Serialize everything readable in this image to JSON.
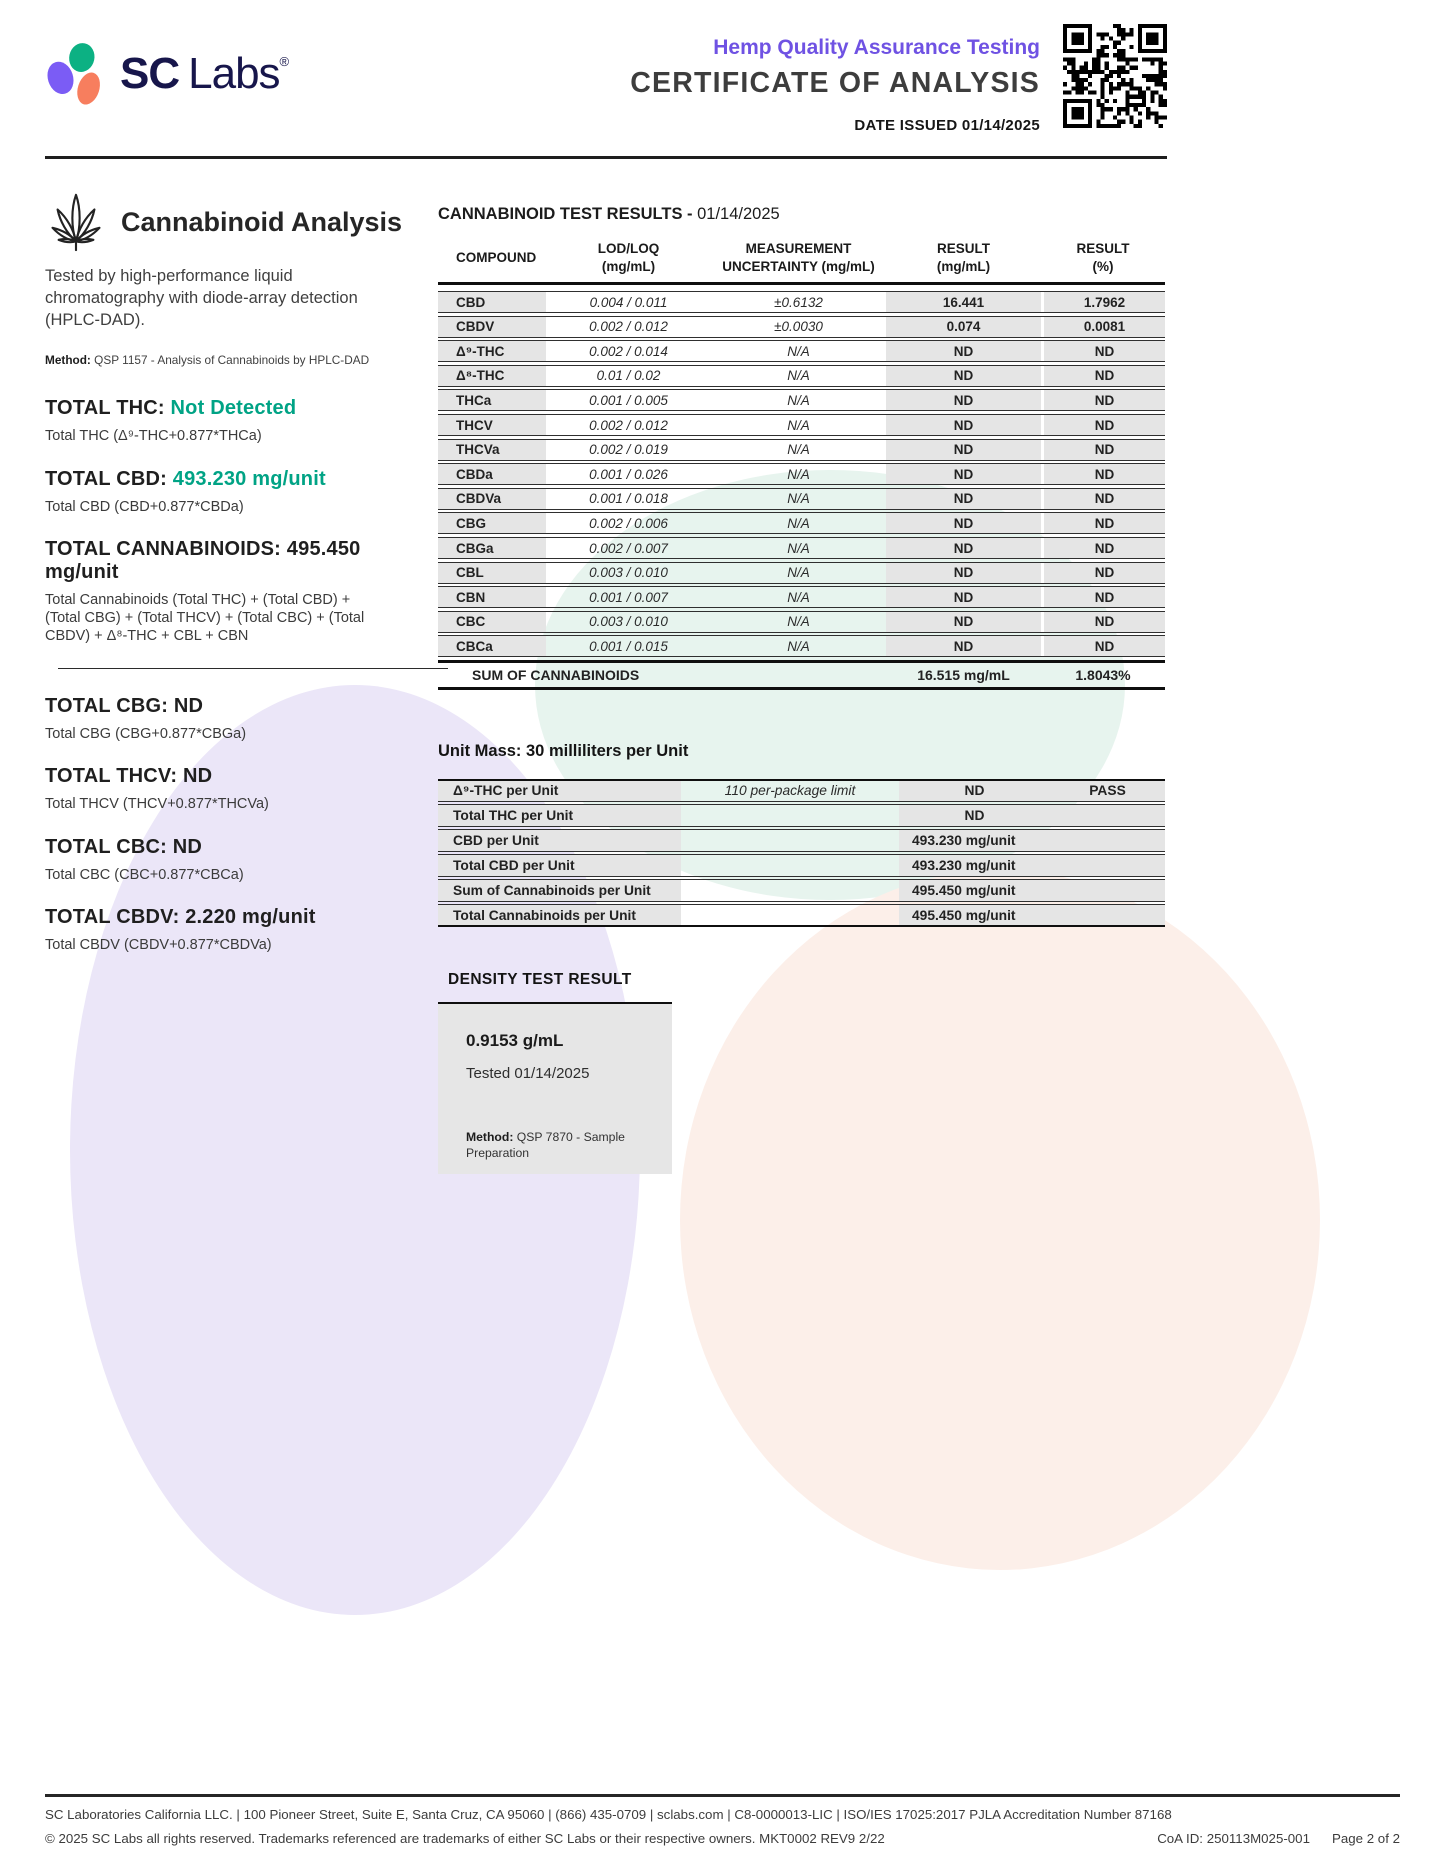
{
  "colors": {
    "accent_green": "#00A385",
    "accent_purple": "#6F52E3",
    "logo_navy": "#17164B",
    "logo_purple": "#7B5CF5",
    "logo_green": "#0CB183",
    "logo_coral": "#F77E5E",
    "cell_gray": "#E5E5E5"
  },
  "header": {
    "brand_bold": "SC",
    "brand_light": "Labs",
    "brand_reg": "®",
    "program": "Hemp Quality Assurance Testing",
    "title": "CERTIFICATE OF ANALYSIS",
    "date_issued": "DATE ISSUED 01/14/2025"
  },
  "analysis": {
    "section_title": "Cannabinoid Analysis",
    "description": "Tested by high-performance liquid chromatography with diode-array detection (HPLC-DAD).",
    "method_label": "Method:",
    "method_value": "QSP 1157 - Analysis of Cannabinoids by HPLC-DAD",
    "totals_primary": [
      {
        "label": "TOTAL THC:",
        "value": "Not Detected",
        "accent": true,
        "formula": "Total THC (Δ⁹-THC+0.877*THCa)"
      },
      {
        "label": "TOTAL CBD:",
        "value": "493.230 mg/unit",
        "accent": true,
        "formula": "Total CBD (CBD+0.877*CBDa)"
      },
      {
        "label": "TOTAL CANNABINOIDS:",
        "value": "495.450 mg/unit",
        "accent": false,
        "formula": "Total Cannabinoids (Total THC) + (Total CBD) + (Total CBG) + (Total THCV) + (Total CBC) + (Total CBDV) + Δ⁸-THC + CBL + CBN"
      }
    ],
    "totals_secondary": [
      {
        "label": "TOTAL CBG:",
        "value": "ND",
        "accent": false,
        "formula": "Total CBG (CBG+0.877*CBGa)"
      },
      {
        "label": "TOTAL THCV:",
        "value": "ND",
        "accent": false,
        "formula": "Total THCV (THCV+0.877*THCVa)"
      },
      {
        "label": "TOTAL CBC:",
        "value": "ND",
        "accent": false,
        "formula": "Total CBC (CBC+0.877*CBCa)"
      },
      {
        "label": "TOTAL CBDV:",
        "value": "2.220 mg/unit",
        "accent": false,
        "formula": "Total CBDV (CBDV+0.877*CBDVa)"
      }
    ]
  },
  "results_table": {
    "title": "CANNABINOID TEST RESULTS -",
    "title_date": "01/14/2025",
    "columns": [
      {
        "l1": "COMPOUND",
        "l2": ""
      },
      {
        "l1": "LOD/LOQ",
        "l2": "(mg/mL)"
      },
      {
        "l1": "MEASUREMENT",
        "l2": "UNCERTAINTY (mg/mL)"
      },
      {
        "l1": "RESULT",
        "l2": "(mg/mL)"
      },
      {
        "l1": "RESULT",
        "l2": "(%)"
      }
    ],
    "rows": [
      {
        "compound": "CBD",
        "lod_loq": "0.004 / 0.011",
        "uncertainty": "±0.6132",
        "result_mg": "16.441",
        "result_pct": "1.7962"
      },
      {
        "compound": "CBDV",
        "lod_loq": "0.002 / 0.012",
        "uncertainty": "±0.0030",
        "result_mg": "0.074",
        "result_pct": "0.0081"
      },
      {
        "compound": "Δ⁹-THC",
        "lod_loq": "0.002 / 0.014",
        "uncertainty": "N/A",
        "result_mg": "ND",
        "result_pct": "ND"
      },
      {
        "compound": "Δ⁸-THC",
        "lod_loq": "0.01 / 0.02",
        "uncertainty": "N/A",
        "result_mg": "ND",
        "result_pct": "ND"
      },
      {
        "compound": "THCa",
        "lod_loq": "0.001 / 0.005",
        "uncertainty": "N/A",
        "result_mg": "ND",
        "result_pct": "ND"
      },
      {
        "compound": "THCV",
        "lod_loq": "0.002 / 0.012",
        "uncertainty": "N/A",
        "result_mg": "ND",
        "result_pct": "ND"
      },
      {
        "compound": "THCVa",
        "lod_loq": "0.002 / 0.019",
        "uncertainty": "N/A",
        "result_mg": "ND",
        "result_pct": "ND"
      },
      {
        "compound": "CBDa",
        "lod_loq": "0.001 / 0.026",
        "uncertainty": "N/A",
        "result_mg": "ND",
        "result_pct": "ND"
      },
      {
        "compound": "CBDVa",
        "lod_loq": "0.001 / 0.018",
        "uncertainty": "N/A",
        "result_mg": "ND",
        "result_pct": "ND"
      },
      {
        "compound": "CBG",
        "lod_loq": "0.002 / 0.006",
        "uncertainty": "N/A",
        "result_mg": "ND",
        "result_pct": "ND"
      },
      {
        "compound": "CBGa",
        "lod_loq": "0.002 / 0.007",
        "uncertainty": "N/A",
        "result_mg": "ND",
        "result_pct": "ND"
      },
      {
        "compound": "CBL",
        "lod_loq": "0.003 / 0.010",
        "uncertainty": "N/A",
        "result_mg": "ND",
        "result_pct": "ND"
      },
      {
        "compound": "CBN",
        "lod_loq": "0.001 / 0.007",
        "uncertainty": "N/A",
        "result_mg": "ND",
        "result_pct": "ND"
      },
      {
        "compound": "CBC",
        "lod_loq": "0.003 / 0.010",
        "uncertainty": "N/A",
        "result_mg": "ND",
        "result_pct": "ND"
      },
      {
        "compound": "CBCa",
        "lod_loq": "0.001 / 0.015",
        "uncertainty": "N/A",
        "result_mg": "ND",
        "result_pct": "ND"
      }
    ],
    "sum_label": "SUM OF CANNABINOIDS",
    "sum_result_mg": "16.515 mg/mL",
    "sum_result_pct": "1.8043%"
  },
  "unit_section": {
    "title": "Unit Mass: 30 milliliters per Unit",
    "rows": [
      {
        "label": "Δ⁹-THC per Unit",
        "limit": "110 per-package limit",
        "result": "ND",
        "status": "PASS"
      },
      {
        "label": "Total THC per Unit",
        "limit": "",
        "result": "ND",
        "status": ""
      },
      {
        "label": "CBD per Unit",
        "limit": "",
        "result": "493.230 mg/unit",
        "status": ""
      },
      {
        "label": "Total CBD per Unit",
        "limit": "",
        "result": "493.230 mg/unit",
        "status": ""
      },
      {
        "label": "Sum of Cannabinoids per Unit",
        "limit": "",
        "result": "495.450 mg/unit",
        "status": ""
      },
      {
        "label": "Total Cannabinoids per Unit",
        "limit": "",
        "result": "495.450 mg/unit",
        "status": ""
      }
    ]
  },
  "density": {
    "title": "DENSITY TEST RESULT",
    "value": "0.9153 g/mL",
    "tested": "Tested 01/14/2025",
    "method_label": "Method:",
    "method_value": "QSP 7870 - Sample Preparation"
  },
  "footer": {
    "line1": "SC Laboratories California LLC. | 100 Pioneer Street, Suite E, Santa Cruz, CA 95060 | (866) 435-0709 | sclabs.com | C8-0000013-LIC | ISO/IES 17025:2017 PJLA Accreditation Number 87168",
    "line2": "© 2025 SC Labs all rights reserved. Trademarks referenced are trademarks of either SC Labs or their respective owners. MKT0002 REV9 2/22",
    "coa_id": "CoA ID: 250113M025-001",
    "page": "Page 2 of 2"
  }
}
